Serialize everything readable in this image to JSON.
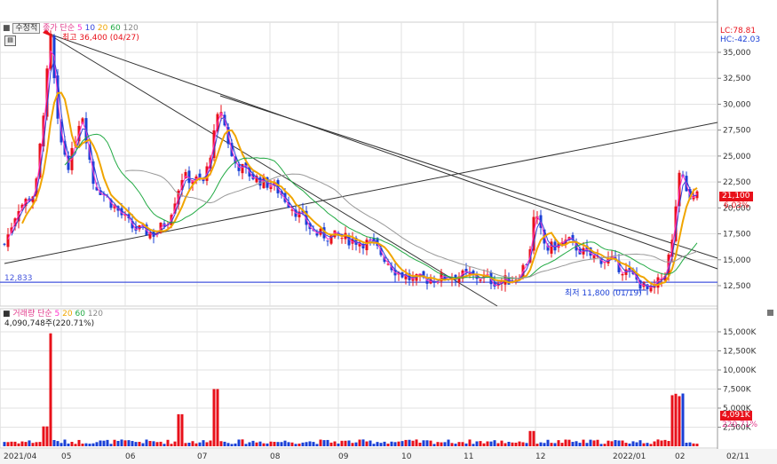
{
  "toolbar": {
    "mode_button": "수정적",
    "price_label": "종가",
    "ma_type": "단순",
    "ma_periods": [
      "5",
      "10",
      "20",
      "60",
      "120"
    ],
    "grid_icon": "grid-icon"
  },
  "volume_toolbar": {
    "label": "거래량",
    "ma_type": "단순",
    "ma_periods": [
      "5",
      "20",
      "60",
      "120"
    ],
    "info": "4,090,748주(220.71%)"
  },
  "indicators": {
    "lc": "LC:78.81",
    "hc": "HC:-42.03"
  },
  "annotations": {
    "high": "최고 36,400 (04/27)",
    "low": "최저 11,800 (01/19)",
    "hline_value": "12,833"
  },
  "current": {
    "price": "21,100",
    "change": "6.03%",
    "volume": "4,091K",
    "volume_pct": "220.71%"
  },
  "colors": {
    "up": "#e8101a",
    "down": "#1a3fd6",
    "ma5": "#ff33cc",
    "ma10": "#3344dd",
    "ma20": "#f0a500",
    "ma60": "#22aa44",
    "ma120": "#999999",
    "hline": "#4455dd",
    "badge": "#e8101a",
    "grid": "#e2e2e2"
  },
  "chart_data": {
    "type": "candlestick",
    "price_ticks": [
      "35,000",
      "32,500",
      "30,000",
      "27,500",
      "25,000",
      "22,500",
      "20,000",
      "17,500",
      "15,000",
      "12,500"
    ],
    "price_tick_values": [
      35000,
      32500,
      30000,
      27500,
      25000,
      22500,
      20000,
      17500,
      15000,
      12500
    ],
    "volume_ticks": [
      "15,000K",
      "12,500K",
      "10,000K",
      "7,500K",
      "5,000K",
      "2,500K"
    ],
    "volume_tick_values": [
      15000,
      12500,
      10000,
      7500,
      5000,
      2500
    ],
    "x_labels": [
      "2021/04",
      "05",
      "06",
      "07",
      "08",
      "09",
      "10",
      "11",
      "12",
      "2022/01",
      "02",
      "02/11"
    ],
    "price_series": [
      {
        "date": "2021/04",
        "close": 16500
      },
      {
        "date": "04/27",
        "close": 36400
      },
      {
        "date": "05",
        "close": 28000
      },
      {
        "date": "05",
        "close": 24000
      },
      {
        "date": "06",
        "close": 18000
      },
      {
        "date": "07",
        "close": 30000
      },
      {
        "date": "07",
        "close": 24000
      },
      {
        "date": "08",
        "close": 22000
      },
      {
        "date": "09",
        "close": 17000
      },
      {
        "date": "10",
        "close": 13000
      },
      {
        "date": "11",
        "close": 13000
      },
      {
        "date": "12",
        "close": 19500
      },
      {
        "date": "12",
        "close": 15500
      },
      {
        "date": "01/19",
        "close": 11800
      },
      {
        "date": "02",
        "close": 23500
      },
      {
        "date": "02/11",
        "close": 21100
      }
    ],
    "horizontal_line": 12833,
    "series": [
      {
        "name": "5"
      },
      {
        "name": "10"
      },
      {
        "name": "20"
      },
      {
        "name": "60"
      },
      {
        "name": "120"
      }
    ]
  }
}
